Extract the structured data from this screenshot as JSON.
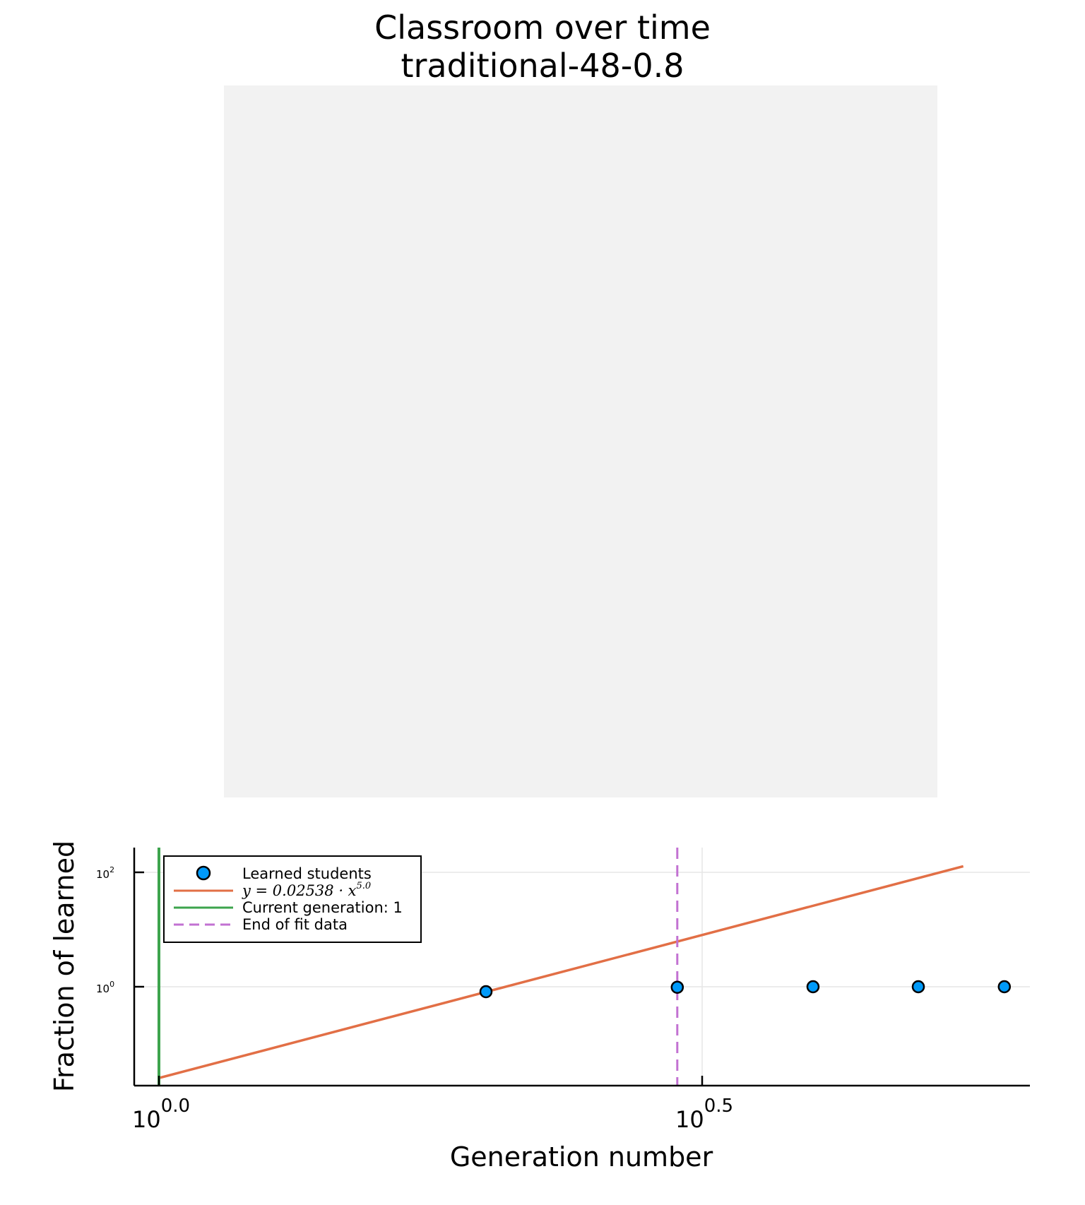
{
  "title": "Classroom over time",
  "subtitle": "traditional-48-0.8",
  "chart_data": {
    "type": "scatter",
    "xlabel": "Generation number",
    "ylabel": "Fraction of learned",
    "x_scale": "log10",
    "y_scale": "log10",
    "x_ticks": [
      {
        "value": 1,
        "base": "10",
        "exp": "0.0"
      },
      {
        "value": 3.1623,
        "base": "10",
        "exp": "0.5"
      }
    ],
    "y_ticks": [
      {
        "value": 1,
        "base": "10",
        "exp": "0"
      },
      {
        "value": 100,
        "base": "10",
        "exp": "2"
      }
    ],
    "xlim": [
      0.97,
      5.7
    ],
    "ylim": [
      0.044,
      230
    ],
    "grid": true,
    "legend_position": "top-left",
    "series": [
      {
        "name": "Learned students",
        "kind": "scatter",
        "color": "#009af9",
        "x": [
          2,
          3,
          4,
          5,
          6
        ],
        "y": [
          0.82,
          0.98,
          1.0,
          1.0,
          1.0
        ]
      },
      {
        "name": "y = 0.02538 · x^5.0",
        "kind": "line",
        "color": "#e26f46",
        "coef": 0.02538,
        "power": 5.0,
        "x_range": [
          1,
          5.5
        ]
      },
      {
        "name": "Current generation: 1",
        "kind": "vline",
        "color": "#3da44d",
        "x": 1
      },
      {
        "name": "End of fit data",
        "kind": "vline-dashed",
        "color": "#c271d2",
        "x": 3
      }
    ],
    "legend": {
      "scatter_label": "Learned students",
      "fit_label_prefix": "y = 0.02538 · x",
      "fit_label_exp": "5.0",
      "current_label": "Current generation: 1",
      "end_label": "End of fit data"
    }
  },
  "colors": {
    "scatter": "#009af9",
    "fit": "#e26f46",
    "current": "#3da44d",
    "end_fit": "#c271d2",
    "panel": "#f2f2f2"
  }
}
